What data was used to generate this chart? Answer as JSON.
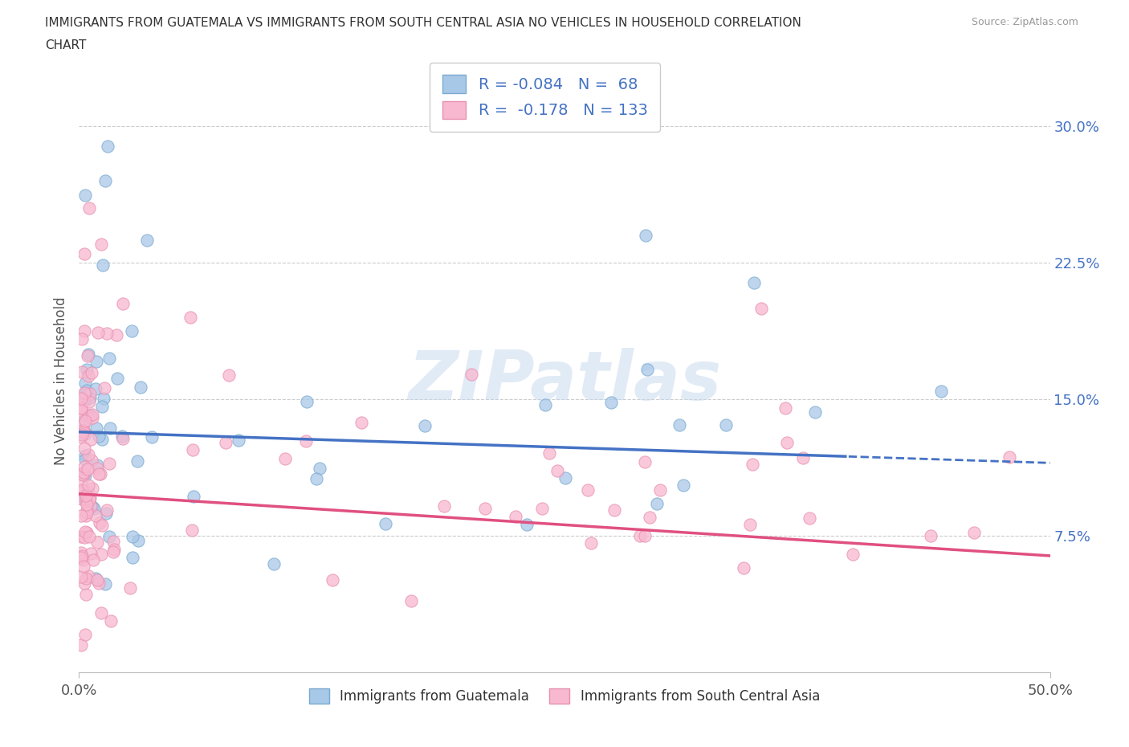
{
  "title_line1": "IMMIGRANTS FROM GUATEMALA VS IMMIGRANTS FROM SOUTH CENTRAL ASIA NO VEHICLES IN HOUSEHOLD CORRELATION",
  "title_line2": "CHART",
  "source_text": "Source: ZipAtlas.com",
  "ylabel": "No Vehicles in Household",
  "x_min": 0.0,
  "x_max": 0.5,
  "y_min": 0.0,
  "y_max": 0.32,
  "x_ticks": [
    0.0,
    0.5
  ],
  "x_tick_labels": [
    "0.0%",
    "50.0%"
  ],
  "y_ticks": [
    0.075,
    0.15,
    0.225,
    0.3
  ],
  "y_tick_labels": [
    "7.5%",
    "15.0%",
    "22.5%",
    "30.0%"
  ],
  "color_guatemala": "#a8c8e8",
  "color_southasia": "#f8b8d0",
  "edge_color_guatemala": "#7aaad0",
  "edge_color_southasia": "#e890b0",
  "line_color_guatemala": "#4472c4",
  "line_color_southasia": "#e05080",
  "R_guatemala": -0.084,
  "N_guatemala": 68,
  "R_southasia": -0.178,
  "N_southasia": 133,
  "watermark_text": "ZIPatlas",
  "background_color": "#ffffff",
  "grid_color": "#cccccc",
  "title_color": "#333333",
  "source_color": "#999999",
  "y_tick_color": "#4472c4",
  "x_tick_color": "#555555"
}
